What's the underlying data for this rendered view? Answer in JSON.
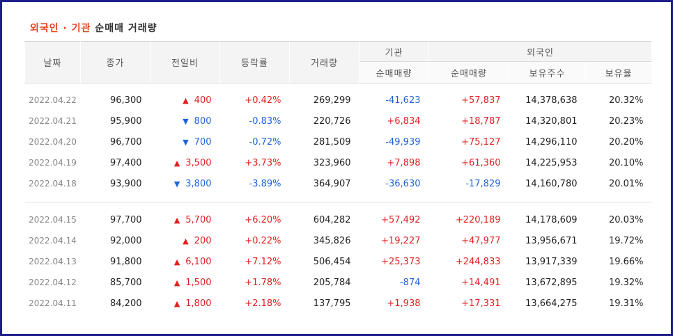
{
  "title": {
    "highlight": "외국인 · 기관",
    "rest": "순매매 거래량"
  },
  "headers": {
    "date": "날짜",
    "close": "종가",
    "change": "전일비",
    "rate": "등락률",
    "volume": "거래량",
    "institution": "기관",
    "foreign": "외국인",
    "inst_net": "순매매량",
    "foreign_net": "순매매량",
    "shares_held": "보유주수",
    "holding_ratio": "보유율"
  },
  "colors": {
    "up": "#e01f1f",
    "down": "#1e63d6",
    "title_highlight": "#e8401c",
    "frame": "#1f1f8c"
  },
  "groups": [
    [
      {
        "date": "2022.04.22",
        "close": "96,300",
        "dir": "up",
        "arrow": "▲",
        "change": "400",
        "rate": "+0.42%",
        "rate_dir": "up",
        "volume": "269,299",
        "inst": "-41,623",
        "inst_dir": "down",
        "foreign": "+57,837",
        "foreign_dir": "up",
        "held": "14,378,638",
        "ratio": "20.32%"
      },
      {
        "date": "2022.04.21",
        "close": "95,900",
        "dir": "down",
        "arrow": "▼",
        "change": "800",
        "rate": "-0.83%",
        "rate_dir": "down",
        "volume": "220,726",
        "inst": "+6,834",
        "inst_dir": "up",
        "foreign": "+18,787",
        "foreign_dir": "up",
        "held": "14,320,801",
        "ratio": "20.23%"
      },
      {
        "date": "2022.04.20",
        "close": "96,700",
        "dir": "down",
        "arrow": "▼",
        "change": "700",
        "rate": "-0.72%",
        "rate_dir": "down",
        "volume": "281,509",
        "inst": "-49,939",
        "inst_dir": "down",
        "foreign": "+75,127",
        "foreign_dir": "up",
        "held": "14,296,110",
        "ratio": "20.20%"
      },
      {
        "date": "2022.04.19",
        "close": "97,400",
        "dir": "up",
        "arrow": "▲",
        "change": "3,500",
        "rate": "+3.73%",
        "rate_dir": "up",
        "volume": "323,960",
        "inst": "+7,898",
        "inst_dir": "up",
        "foreign": "+61,360",
        "foreign_dir": "up",
        "held": "14,225,953",
        "ratio": "20.10%"
      },
      {
        "date": "2022.04.18",
        "close": "93,900",
        "dir": "down",
        "arrow": "▼",
        "change": "3,800",
        "rate": "-3.89%",
        "rate_dir": "down",
        "volume": "364,907",
        "inst": "-36,630",
        "inst_dir": "down",
        "foreign": "-17,829",
        "foreign_dir": "down",
        "held": "14,160,780",
        "ratio": "20.01%"
      }
    ],
    [
      {
        "date": "2022.04.15",
        "close": "97,700",
        "dir": "up",
        "arrow": "▲",
        "change": "5,700",
        "rate": "+6.20%",
        "rate_dir": "up",
        "volume": "604,282",
        "inst": "+57,492",
        "inst_dir": "up",
        "foreign": "+220,189",
        "foreign_dir": "up",
        "held": "14,178,609",
        "ratio": "20.03%"
      },
      {
        "date": "2022.04.14",
        "close": "92,000",
        "dir": "up",
        "arrow": "▲",
        "change": "200",
        "rate": "+0.22%",
        "rate_dir": "up",
        "volume": "345,826",
        "inst": "+19,227",
        "inst_dir": "up",
        "foreign": "+47,977",
        "foreign_dir": "up",
        "held": "13,956,671",
        "ratio": "19.72%"
      },
      {
        "date": "2022.04.13",
        "close": "91,800",
        "dir": "up",
        "arrow": "▲",
        "change": "6,100",
        "rate": "+7.12%",
        "rate_dir": "up",
        "volume": "506,454",
        "inst": "+25,373",
        "inst_dir": "up",
        "foreign": "+244,833",
        "foreign_dir": "up",
        "held": "13,917,339",
        "ratio": "19.66%"
      },
      {
        "date": "2022.04.12",
        "close": "85,700",
        "dir": "up",
        "arrow": "▲",
        "change": "1,500",
        "rate": "+1.78%",
        "rate_dir": "up",
        "volume": "205,784",
        "inst": "-874",
        "inst_dir": "down",
        "foreign": "+14,491",
        "foreign_dir": "up",
        "held": "13,672,895",
        "ratio": "19.32%"
      },
      {
        "date": "2022.04.11",
        "close": "84,200",
        "dir": "up",
        "arrow": "▲",
        "change": "1,800",
        "rate": "+2.18%",
        "rate_dir": "up",
        "volume": "137,795",
        "inst": "+1,938",
        "inst_dir": "up",
        "foreign": "+17,331",
        "foreign_dir": "up",
        "held": "13,664,275",
        "ratio": "19.31%"
      }
    ]
  ]
}
